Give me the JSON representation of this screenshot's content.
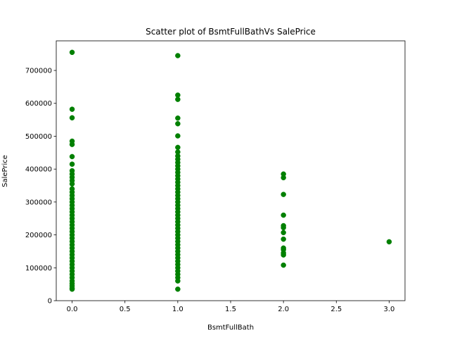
{
  "chart_data": {
    "type": "scatter",
    "title": "Scatter plot of BsmtFullBathVs SalePrice",
    "xlabel": "BsmtFullBath",
    "ylabel": "SalePrice",
    "xlim": [
      -0.15,
      3.15
    ],
    "ylim": [
      0,
      790000
    ],
    "xticks": [
      0.0,
      0.5,
      1.0,
      1.5,
      2.0,
      2.5,
      3.0
    ],
    "xtick_labels": [
      "0.0",
      "0.5",
      "1.0",
      "1.5",
      "2.0",
      "2.5",
      "3.0"
    ],
    "yticks": [
      0,
      100000,
      200000,
      300000,
      400000,
      500000,
      600000,
      700000
    ],
    "ytick_labels": [
      "0",
      "100000",
      "200000",
      "300000",
      "400000",
      "500000",
      "600000",
      "700000"
    ],
    "grid": false,
    "marker_color": "#008000",
    "series": [
      {
        "points": [
          [
            0,
            755000
          ],
          [
            0,
            582000
          ],
          [
            0,
            556000
          ],
          [
            0,
            485000
          ],
          [
            0,
            475000
          ],
          [
            0,
            438000
          ],
          [
            0,
            415000
          ],
          [
            0,
            395000
          ],
          [
            0,
            385000
          ],
          [
            0,
            375000
          ],
          [
            0,
            365000
          ],
          [
            0,
            355000
          ],
          [
            0,
            340000
          ],
          [
            0,
            330000
          ],
          [
            0,
            320000
          ],
          [
            0,
            310000
          ],
          [
            0,
            300000
          ],
          [
            0,
            290000
          ],
          [
            0,
            280000
          ],
          [
            0,
            270000
          ],
          [
            0,
            260000
          ],
          [
            0,
            250000
          ],
          [
            0,
            240000
          ],
          [
            0,
            230000
          ],
          [
            0,
            220000
          ],
          [
            0,
            210000
          ],
          [
            0,
            200000
          ],
          [
            0,
            190000
          ],
          [
            0,
            180000
          ],
          [
            0,
            170000
          ],
          [
            0,
            160000
          ],
          [
            0,
            150000
          ],
          [
            0,
            140000
          ],
          [
            0,
            130000
          ],
          [
            0,
            120000
          ],
          [
            0,
            110000
          ],
          [
            0,
            100000
          ],
          [
            0,
            90000
          ],
          [
            0,
            80000
          ],
          [
            0,
            70000
          ],
          [
            0,
            60000
          ],
          [
            0,
            52000
          ],
          [
            0,
            45000
          ],
          [
            0,
            38000
          ],
          [
            0,
            35000
          ],
          [
            1,
            745000
          ],
          [
            1,
            625000
          ],
          [
            1,
            612000
          ],
          [
            1,
            555000
          ],
          [
            1,
            538000
          ],
          [
            1,
            501000
          ],
          [
            1,
            466000
          ],
          [
            1,
            452000
          ],
          [
            1,
            440000
          ],
          [
            1,
            430000
          ],
          [
            1,
            420000
          ],
          [
            1,
            410000
          ],
          [
            1,
            400000
          ],
          [
            1,
            390000
          ],
          [
            1,
            380000
          ],
          [
            1,
            370000
          ],
          [
            1,
            360000
          ],
          [
            1,
            350000
          ],
          [
            1,
            340000
          ],
          [
            1,
            330000
          ],
          [
            1,
            320000
          ],
          [
            1,
            310000
          ],
          [
            1,
            300000
          ],
          [
            1,
            290000
          ],
          [
            1,
            280000
          ],
          [
            1,
            270000
          ],
          [
            1,
            260000
          ],
          [
            1,
            250000
          ],
          [
            1,
            240000
          ],
          [
            1,
            230000
          ],
          [
            1,
            220000
          ],
          [
            1,
            210000
          ],
          [
            1,
            200000
          ],
          [
            1,
            190000
          ],
          [
            1,
            180000
          ],
          [
            1,
            170000
          ],
          [
            1,
            160000
          ],
          [
            1,
            150000
          ],
          [
            1,
            140000
          ],
          [
            1,
            130000
          ],
          [
            1,
            120000
          ],
          [
            1,
            110000
          ],
          [
            1,
            100000
          ],
          [
            1,
            90000
          ],
          [
            1,
            80000
          ],
          [
            1,
            70000
          ],
          [
            1,
            60000
          ],
          [
            1,
            35000
          ],
          [
            2,
            385000
          ],
          [
            2,
            374000
          ],
          [
            2,
            323000
          ],
          [
            2,
            260000
          ],
          [
            2,
            228000
          ],
          [
            2,
            222000
          ],
          [
            2,
            207000
          ],
          [
            2,
            187000
          ],
          [
            2,
            160000
          ],
          [
            2,
            155000
          ],
          [
            2,
            145000
          ],
          [
            2,
            139000
          ],
          [
            2,
            108000
          ],
          [
            3,
            179000
          ]
        ]
      }
    ]
  }
}
